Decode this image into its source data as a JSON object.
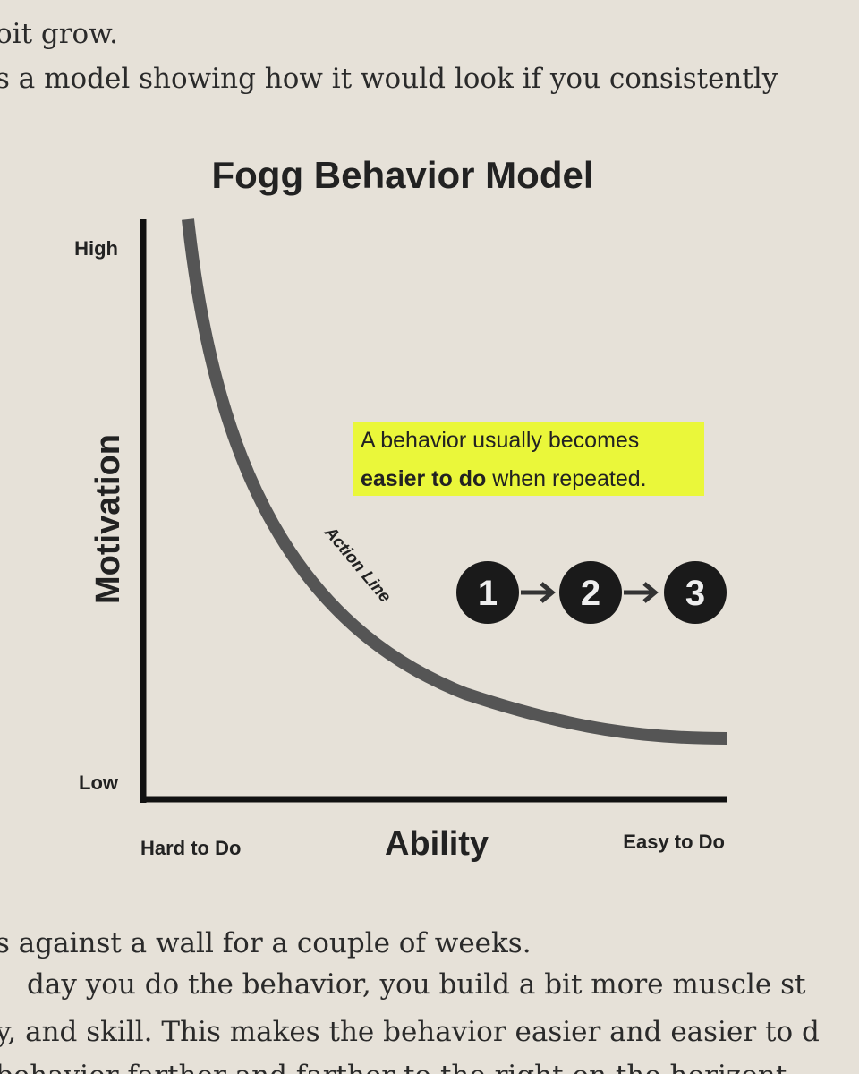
{
  "header": {
    "lines": [
      "oit grow.",
      "s a model showing how it would look if you consistently"
    ]
  },
  "diagram": {
    "title": "Fogg Behavior Model",
    "y_axis": {
      "label": "Motivation",
      "high": "High",
      "low": "Low"
    },
    "x_axis": {
      "label": "Ability",
      "start": "Hard to Do",
      "end": "Easy to Do"
    },
    "curve_label": "Action Line",
    "note": {
      "line1": "A behavior usually becomes",
      "bold": "easier to do",
      "rest": "when repeated."
    },
    "steps": [
      "1",
      "2",
      "3"
    ]
  },
  "body": {
    "lines": [
      "s against a wall for a couple of weeks.",
      "day you do the behavior, you build a bit more muscle st",
      "y, and skill. This makes the behavior easier and easier to d",
      "behavior farther and farther to the right on the horizont"
    ]
  }
}
